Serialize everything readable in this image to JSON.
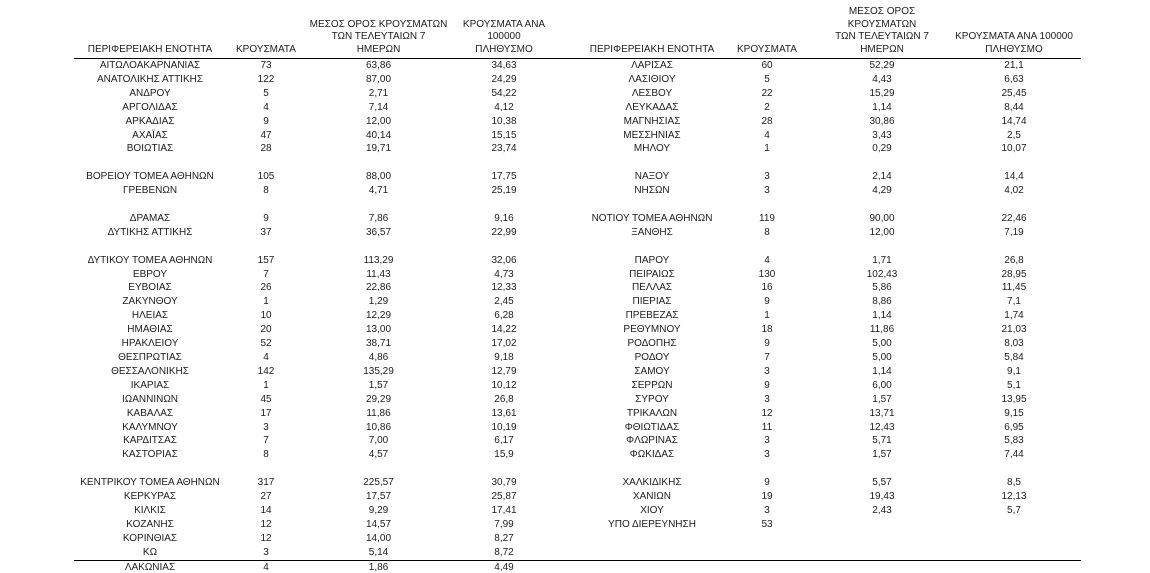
{
  "page": {
    "background_color": "#ffffff",
    "text_color": "#1c1c1c",
    "rule_color": "#000000"
  },
  "table": {
    "column_headers": {
      "region": "ΠΕΡΙΦΕΡΕΙΑΚΗ ΕΝΟΤΗΤΑ",
      "cases": "ΚΡΟΥΣΜΑΤΑ",
      "avg_7day": "ΜΕΣΟΣ ΟΡΟΣ ΚΡΟΥΣΜΑΤΩΝ\nΤΩΝ ΤΕΛΕΥΤΑΙΩΝ 7\nΗΜΕΡΩΝ",
      "per_100k": "ΚΡΟΥΣΜΑΤΑ ΑΝΑ 100000\nΠΛΗΘΥΣΜΟ"
    },
    "left_rows": [
      [
        "ΑΙΤΩΛΟΑΚΑΡΝΑΝΙΑΣ",
        "73",
        "63,86",
        "34,63"
      ],
      [
        "ΑΝΑΤΟΛΙΚΗΣ ΑΤΤΙΚΗΣ",
        "122",
        "87,00",
        "24,29"
      ],
      [
        "ΑΝΔΡΟΥ",
        "5",
        "2,71",
        "54,22"
      ],
      [
        "ΑΡΓΟΛΙΔΑΣ",
        "4",
        "7,14",
        "4,12"
      ],
      [
        "ΑΡΚΑΔΙΑΣ",
        "9",
        "12,00",
        "10,38"
      ],
      [
        "ΑΧΑΪΑΣ",
        "47",
        "40,14",
        "15,15"
      ],
      [
        "ΒΟΙΩΤΙΑΣ",
        "28",
        "19,71",
        "23,74"
      ],
      [
        "",
        "",
        "",
        ""
      ],
      [
        "ΒΟΡΕΙΟΥ ΤΟΜΕΑ ΑΘΗΝΩΝ",
        "105",
        "88,00",
        "17,75"
      ],
      [
        "ΓΡΕΒΕΝΩΝ",
        "8",
        "4,71",
        "25,19"
      ],
      [
        "",
        "",
        "",
        ""
      ],
      [
        "ΔΡΑΜΑΣ",
        "9",
        "7,86",
        "9,16"
      ],
      [
        "ΔΥΤΙΚΗΣ ΑΤΤΙΚΗΣ",
        "37",
        "36,57",
        "22,99"
      ],
      [
        "",
        "",
        "",
        ""
      ],
      [
        "ΔΥΤΙΚΟΥ ΤΟΜΕΑ ΑΘΗΝΩΝ",
        "157",
        "113,29",
        "32,06"
      ],
      [
        "ΕΒΡΟΥ",
        "7",
        "11,43",
        "4,73"
      ],
      [
        "ΕΥΒΟΙΑΣ",
        "26",
        "22,86",
        "12,33"
      ],
      [
        "ΖΑΚΥΝΘΟΥ",
        "1",
        "1,29",
        "2,45"
      ],
      [
        "ΗΛΕΙΑΣ",
        "10",
        "12,29",
        "6,28"
      ],
      [
        "ΗΜΑΘΙΑΣ",
        "20",
        "13,00",
        "14,22"
      ],
      [
        "ΗΡΑΚΛΕΙΟΥ",
        "52",
        "38,71",
        "17,02"
      ],
      [
        "ΘΕΣΠΡΩΤΙΑΣ",
        "4",
        "4,86",
        "9,18"
      ],
      [
        "ΘΕΣΣΑΛΟΝΙΚΗΣ",
        "142",
        "135,29",
        "12,79"
      ],
      [
        "ΙΚΑΡΙΑΣ",
        "1",
        "1,57",
        "10,12"
      ],
      [
        "ΙΩΑΝΝΙΝΩΝ",
        "45",
        "29,29",
        "26,8"
      ],
      [
        "ΚΑΒΑΛΑΣ",
        "17",
        "11,86",
        "13,61"
      ],
      [
        "ΚΑΛΥΜΝΟΥ",
        "3",
        "10,86",
        "10,19"
      ],
      [
        "ΚΑΡΔΙΤΣΑΣ",
        "7",
        "7,00",
        "6,17"
      ],
      [
        "ΚΑΣΤΟΡΙΑΣ",
        "8",
        "4,57",
        "15,9"
      ],
      [
        "",
        "",
        "",
        ""
      ],
      [
        "ΚΕΝΤΡΙΚΟΥ ΤΟΜΕΑ ΑΘΗΝΩΝ",
        "317",
        "225,57",
        "30,79"
      ],
      [
        "ΚΕΡΚΥΡΑΣ",
        "27",
        "17,57",
        "25,87"
      ],
      [
        "ΚΙΛΚΙΣ",
        "14",
        "9,29",
        "17,41"
      ],
      [
        "ΚΟΖΑΝΗΣ",
        "12",
        "14,57",
        "7,99"
      ],
      [
        "ΚΟΡΙΝΘΙΑΣ",
        "12",
        "14,00",
        "8,27"
      ],
      [
        "ΚΩ",
        "3",
        "5,14",
        "8,72"
      ],
      [
        "ΛΑΚΩΝΙΑΣ",
        "4",
        "1,86",
        "4,49"
      ]
    ],
    "right_rows": [
      [
        "ΛΑΡΙΣΑΣ",
        "60",
        "52,29",
        "21,1"
      ],
      [
        "ΛΑΣΙΘΙΟΥ",
        "5",
        "4,43",
        "6,63"
      ],
      [
        "ΛΕΣΒΟΥ",
        "22",
        "15,29",
        "25,45"
      ],
      [
        "ΛΕΥΚΑΔΑΣ",
        "2",
        "1,14",
        "8,44"
      ],
      [
        "ΜΑΓΝΗΣΙΑΣ",
        "28",
        "30,86",
        "14,74"
      ],
      [
        "ΜΕΣΣΗΝΙΑΣ",
        "4",
        "3,43",
        "2,5"
      ],
      [
        "ΜΗΛΟΥ",
        "1",
        "0,29",
        "10,07"
      ],
      [
        "",
        "",
        "",
        ""
      ],
      [
        "ΝΑΞΟΥ",
        "3",
        "2,14",
        "14,4"
      ],
      [
        "ΝΗΣΩΝ",
        "3",
        "4,29",
        "4,02"
      ],
      [
        "",
        "",
        "",
        ""
      ],
      [
        "ΝΟΤΙΟΥ ΤΟΜΕΑ ΑΘΗΝΩΝ",
        "119",
        "90,00",
        "22,46"
      ],
      [
        "ΞΑΝΘΗΣ",
        "8",
        "12,00",
        "7,19"
      ],
      [
        "",
        "",
        "",
        ""
      ],
      [
        "ΠΑΡΟΥ",
        "4",
        "1,71",
        "26,8"
      ],
      [
        "ΠΕΙΡΑΙΩΣ",
        "130",
        "102,43",
        "28,95"
      ],
      [
        "ΠΕΛΛΑΣ",
        "16",
        "5,86",
        "11,45"
      ],
      [
        "ΠΙΕΡΙΑΣ",
        "9",
        "8,86",
        "7,1"
      ],
      [
        "ΠΡΕΒΕΖΑΣ",
        "1",
        "1,14",
        "1,74"
      ],
      [
        "ΡΕΘΥΜΝΟΥ",
        "18",
        "11,86",
        "21,03"
      ],
      [
        "ΡΟΔΟΠΗΣ",
        "9",
        "5,00",
        "8,03"
      ],
      [
        "ΡΟΔΟΥ",
        "7",
        "5,00",
        "5,84"
      ],
      [
        "ΣΑΜΟΥ",
        "3",
        "1,14",
        "9,1"
      ],
      [
        "ΣΕΡΡΩΝ",
        "9",
        "6,00",
        "5,1"
      ],
      [
        "ΣΥΡΟΥ",
        "3",
        "1,57",
        "13,95"
      ],
      [
        "ΤΡΙΚΑΛΩΝ",
        "12",
        "13,71",
        "9,15"
      ],
      [
        "ΦΘΙΩΤΙΔΑΣ",
        "11",
        "12,43",
        "6,95"
      ],
      [
        "ΦΛΩΡΙΝΑΣ",
        "3",
        "5,71",
        "5,83"
      ],
      [
        "ΦΩΚΙΔΑΣ",
        "3",
        "1,57",
        "7,44"
      ],
      [
        "",
        "",
        "",
        ""
      ],
      [
        "ΧΑΛΚΙΔΙΚΗΣ",
        "9",
        "5,57",
        "8,5"
      ],
      [
        "ΧΑΝΙΩΝ",
        "19",
        "19,43",
        "12,13"
      ],
      [
        "ΧΙΟΥ",
        "3",
        "2,43",
        "5,7"
      ],
      [
        "ΥΠΟ ΔΙΕΡΕΥΝΗΣΗ",
        "53",
        "",
        ""
      ],
      [
        "",
        "",
        "",
        ""
      ],
      [
        "",
        "",
        "",
        ""
      ],
      [
        "",
        "",
        "",
        ""
      ]
    ]
  }
}
